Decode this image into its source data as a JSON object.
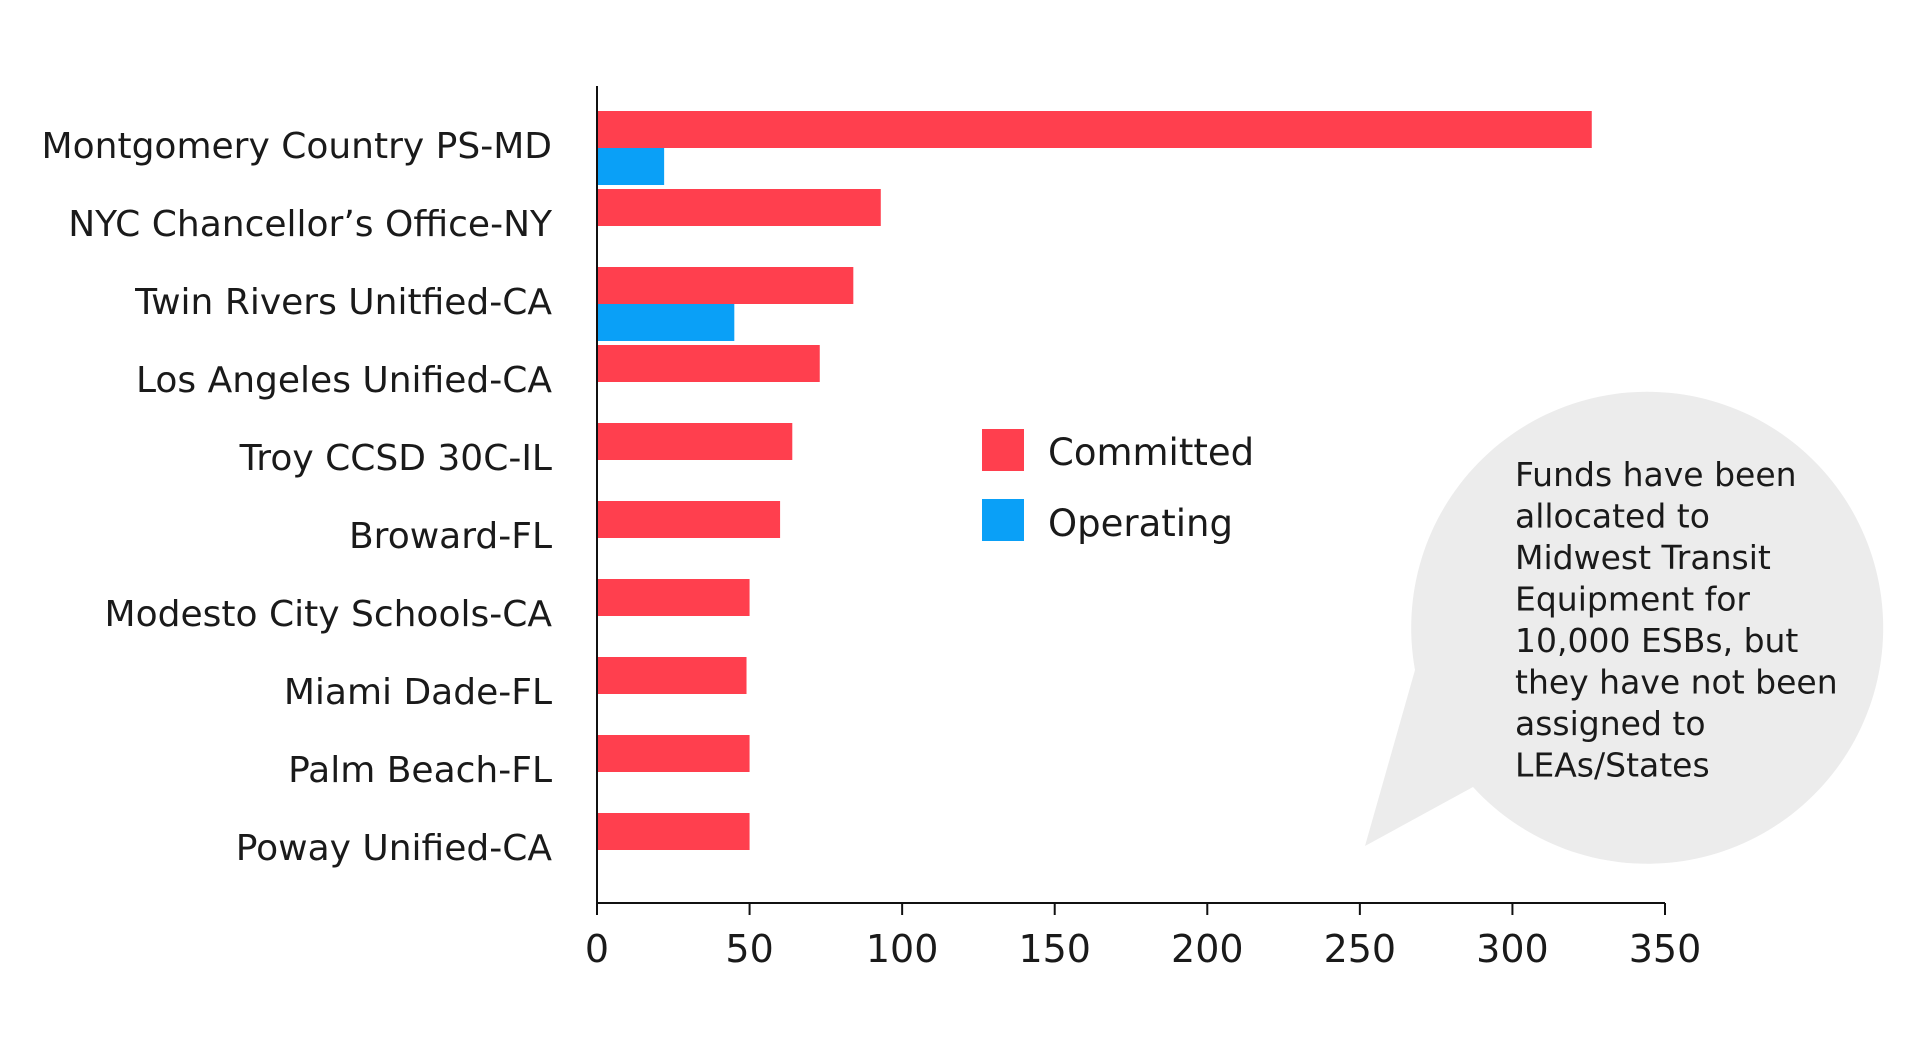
{
  "chart_data": {
    "type": "bar",
    "orientation": "horizontal",
    "categories": [
      "Montgomery Country PS-MD",
      "NYC Chancellor’s Office-NY",
      "Twin Rivers Unitfied-CA",
      "Los Angeles Unified-CA",
      "Troy CCSD 30C-IL",
      "Broward-FL",
      "Modesto City Schools-CA",
      "Miami Dade-FL",
      "Palm Beach-FL",
      "Poway Unified-CA"
    ],
    "series": [
      {
        "name": "Committed",
        "color": "#ff3f4e",
        "values": [
          326,
          93,
          84,
          73,
          64,
          60,
          50,
          49,
          50,
          50
        ]
      },
      {
        "name": "Operating",
        "color": "#0aa0f7",
        "values": [
          22,
          null,
          45,
          null,
          null,
          null,
          null,
          null,
          null,
          null
        ]
      }
    ],
    "xlim": [
      0,
      350
    ],
    "xticks": [
      0,
      50,
      100,
      150,
      200,
      250,
      300,
      350
    ],
    "title": "",
    "xlabel": "",
    "ylabel": "",
    "legend": "center",
    "grid": false,
    "annotation": {
      "lines": [
        "Funds have been",
        "allocated to",
        "Midwest Transit",
        "Equipment for",
        "10,000 ESBs, but",
        "they have not been",
        "assigned to",
        "LEAs/States"
      ],
      "bubble_color": "#ececec"
    }
  }
}
